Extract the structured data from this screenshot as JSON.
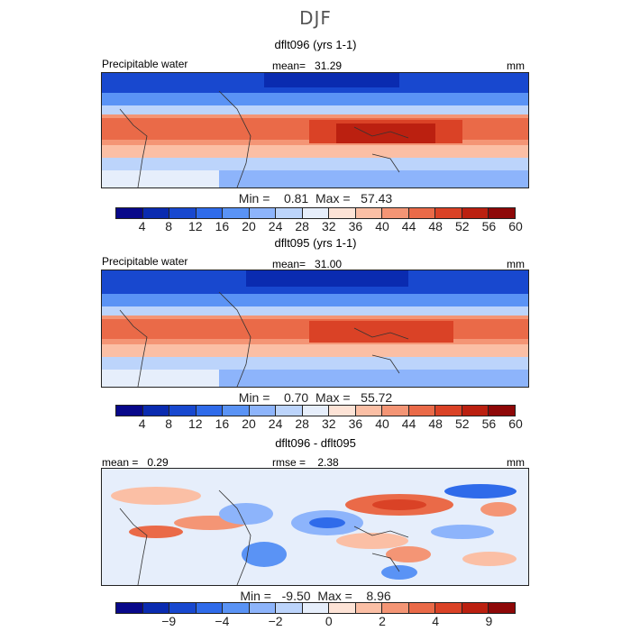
{
  "figure": {
    "season": "DJF"
  },
  "panels": [
    {
      "title": "dflt096 (yrs 1-1)",
      "label_left": "Precipitable water",
      "stat_text": "mean=   31.29",
      "units": "mm",
      "minmax": "Min =    0.81  Max =   57.43"
    },
    {
      "title": "dflt095 (yrs 1-1)",
      "label_left": "Precipitable water",
      "stat_text": "mean=   31.00",
      "units": "mm",
      "minmax": "Min =    0.70  Max =   55.72"
    },
    {
      "title": "dflt096 - dflt095",
      "label_left": "mean =   0.29",
      "stat_text": "rmse =    2.38",
      "units": "mm",
      "minmax": "Min =   -9.50  Max =    8.96"
    }
  ],
  "colorbars": {
    "abs": {
      "colors": [
        "#08088a",
        "#0a2bb0",
        "#1848cf",
        "#2f6bea",
        "#5a93f5",
        "#8db4fb",
        "#bcd4fb",
        "#e6eefb",
        "#fde3d6",
        "#fbbfa5",
        "#f49575",
        "#ea6a48",
        "#da4226",
        "#bb2010",
        "#8e0808"
      ],
      "ticks": [
        "4",
        "8",
        "12",
        "16",
        "20",
        "24",
        "28",
        "32",
        "36",
        "40",
        "44",
        "48",
        "52",
        "56",
        "60"
      ]
    },
    "diff": {
      "colors": [
        "#08088a",
        "#0a2bb0",
        "#1848cf",
        "#2f6bea",
        "#5a93f5",
        "#8db4fb",
        "#bcd4fb",
        "#e6eefb",
        "#fde3d6",
        "#fbbfa5",
        "#f49575",
        "#ea6a48",
        "#da4226",
        "#bb2010",
        "#8e0808"
      ],
      "ticks": [
        "−9",
        "−4",
        "−2",
        "0",
        "2",
        "4",
        "9"
      ],
      "tick_boundaries": [
        2,
        4,
        6,
        8,
        10,
        12,
        14
      ]
    }
  }
}
